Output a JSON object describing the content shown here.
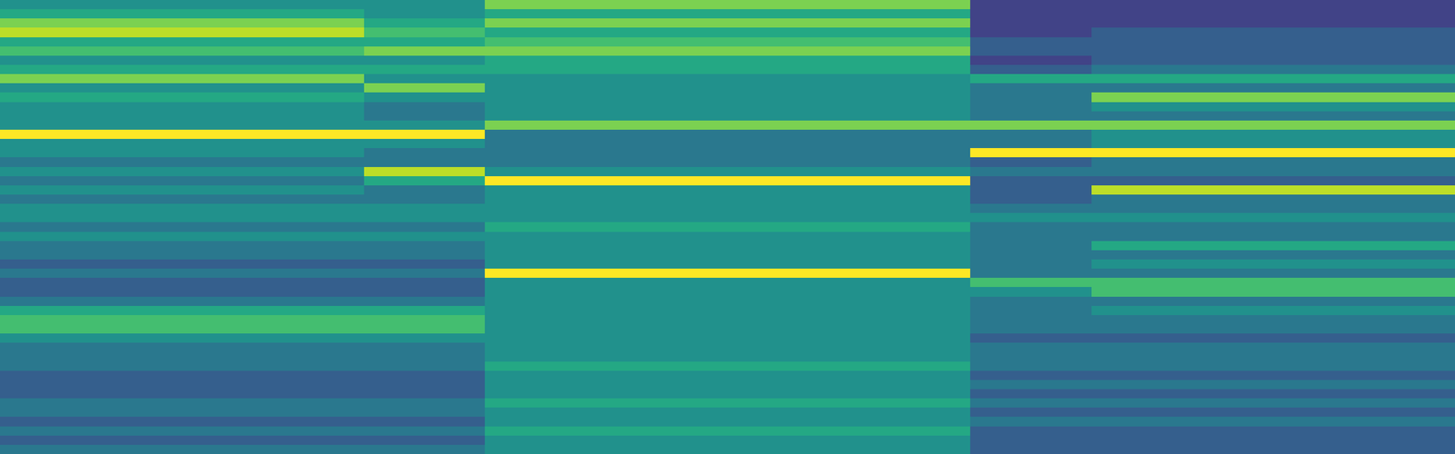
{
  "chart_data": {
    "type": "heatmap",
    "color": "Viridis",
    "tick_labels": false,
    "zlim": [
      0,
      10
    ],
    "cells": [
      [
        5,
        5,
        5,
        5,
        5,
        5,
        5,
        5,
        8,
        8,
        8,
        8,
        8,
        8,
        8,
        8,
        2,
        2,
        2,
        2,
        2,
        2,
        2,
        2
      ],
      [
        6,
        6,
        6,
        6,
        6,
        6,
        5,
        5,
        6,
        6,
        6,
        6,
        6,
        6,
        6,
        6,
        2,
        2,
        2,
        2,
        2,
        2,
        2,
        2
      ],
      [
        8,
        8,
        8,
        8,
        8,
        8,
        6,
        6,
        8,
        8,
        8,
        8,
        8,
        8,
        8,
        8,
        2,
        2,
        2,
        2,
        2,
        2,
        2,
        2
      ],
      [
        9,
        9,
        9,
        9,
        9,
        9,
        7,
        7,
        6,
        6,
        6,
        6,
        6,
        6,
        6,
        6,
        2,
        2,
        3,
        3,
        3,
        3,
        3,
        3
      ],
      [
        6,
        6,
        6,
        6,
        6,
        6,
        6,
        6,
        7,
        7,
        7,
        7,
        7,
        7,
        7,
        7,
        3,
        3,
        3,
        3,
        3,
        3,
        3,
        3
      ],
      [
        7,
        7,
        7,
        7,
        7,
        7,
        8,
        8,
        8,
        8,
        8,
        8,
        8,
        8,
        8,
        8,
        3,
        3,
        3,
        3,
        3,
        3,
        3,
        3
      ],
      [
        5,
        5,
        5,
        5,
        5,
        5,
        5,
        5,
        6,
        6,
        6,
        6,
        6,
        6,
        6,
        6,
        2,
        2,
        3,
        3,
        3,
        3,
        3,
        3
      ],
      [
        6,
        6,
        6,
        6,
        6,
        6,
        6,
        6,
        6,
        6,
        6,
        6,
        6,
        6,
        6,
        6,
        3,
        3,
        4,
        4,
        4,
        4,
        4,
        4
      ],
      [
        8,
        8,
        8,
        8,
        8,
        8,
        5,
        5,
        5,
        5,
        5,
        5,
        5,
        5,
        5,
        5,
        6,
        6,
        6,
        6,
        6,
        6,
        6,
        6
      ],
      [
        5,
        5,
        5,
        5,
        5,
        5,
        8,
        8,
        5,
        5,
        5,
        5,
        5,
        5,
        5,
        5,
        4,
        4,
        4,
        4,
        4,
        4,
        4,
        4
      ],
      [
        6,
        6,
        6,
        6,
        6,
        6,
        5,
        5,
        5,
        5,
        5,
        5,
        5,
        5,
        5,
        5,
        4,
        4,
        8,
        8,
        8,
        8,
        8,
        8
      ],
      [
        5,
        5,
        5,
        5,
        5,
        5,
        4,
        4,
        5,
        5,
        5,
        5,
        5,
        5,
        5,
        5,
        4,
        4,
        5,
        5,
        5,
        5,
        5,
        5
      ],
      [
        5,
        5,
        5,
        5,
        5,
        5,
        4,
        4,
        5,
        5,
        5,
        5,
        5,
        5,
        5,
        5,
        4,
        4,
        4,
        4,
        4,
        4,
        4,
        4
      ],
      [
        5,
        5,
        5,
        5,
        5,
        5,
        5,
        5,
        8,
        8,
        8,
        8,
        8,
        8,
        8,
        8,
        8,
        8,
        8,
        8,
        8,
        8,
        8,
        8
      ],
      [
        10,
        10,
        10,
        10,
        10,
        10,
        10,
        10,
        4,
        4,
        4,
        4,
        4,
        4,
        4,
        4,
        4,
        4,
        5,
        5,
        5,
        5,
        5,
        5
      ],
      [
        5,
        5,
        5,
        5,
        5,
        5,
        5,
        5,
        4,
        4,
        4,
        4,
        4,
        4,
        4,
        4,
        4,
        4,
        5,
        5,
        5,
        5,
        5,
        5
      ],
      [
        5,
        5,
        5,
        5,
        5,
        5,
        4,
        4,
        4,
        4,
        4,
        4,
        4,
        4,
        4,
        4,
        10,
        10,
        10,
        10,
        10,
        10,
        10,
        10
      ],
      [
        4,
        4,
        4,
        4,
        4,
        4,
        4,
        4,
        4,
        4,
        4,
        4,
        4,
        4,
        4,
        4,
        3,
        3,
        4,
        4,
        4,
        4,
        4,
        4
      ],
      [
        5,
        5,
        5,
        5,
        5,
        5,
        9,
        9,
        5,
        5,
        5,
        5,
        5,
        5,
        5,
        5,
        4,
        4,
        4,
        4,
        4,
        4,
        4,
        4
      ],
      [
        4,
        4,
        4,
        4,
        4,
        4,
        6,
        6,
        10,
        10,
        10,
        10,
        10,
        10,
        10,
        10,
        3,
        3,
        3,
        3,
        3,
        3,
        3,
        3
      ],
      [
        5,
        5,
        5,
        5,
        5,
        5,
        4,
        4,
        5,
        5,
        5,
        5,
        5,
        5,
        5,
        5,
        3,
        3,
        9,
        9,
        9,
        9,
        9,
        9
      ],
      [
        4,
        4,
        4,
        4,
        4,
        4,
        4,
        4,
        5,
        5,
        5,
        5,
        5,
        5,
        5,
        5,
        3,
        3,
        4,
        4,
        4,
        4,
        4,
        4
      ],
      [
        5,
        5,
        5,
        5,
        5,
        5,
        5,
        5,
        5,
        5,
        5,
        5,
        5,
        5,
        5,
        5,
        4,
        4,
        4,
        4,
        4,
        4,
        4,
        4
      ],
      [
        5,
        5,
        5,
        5,
        5,
        5,
        5,
        5,
        5,
        5,
        5,
        5,
        5,
        5,
        5,
        5,
        5,
        5,
        5,
        5,
        5,
        5,
        5,
        5
      ],
      [
        4,
        4,
        4,
        4,
        4,
        4,
        4,
        4,
        6,
        6,
        6,
        6,
        6,
        6,
        6,
        6,
        4,
        4,
        4,
        4,
        4,
        4,
        4,
        4
      ],
      [
        5,
        5,
        5,
        5,
        5,
        5,
        5,
        5,
        5,
        5,
        5,
        5,
        5,
        5,
        5,
        5,
        4,
        4,
        4,
        4,
        4,
        4,
        4,
        4
      ],
      [
        4,
        4,
        4,
        4,
        4,
        4,
        4,
        4,
        5,
        5,
        5,
        5,
        5,
        5,
        5,
        5,
        4,
        4,
        6,
        6,
        6,
        6,
        6,
        6
      ],
      [
        4,
        4,
        4,
        4,
        4,
        4,
        4,
        4,
        5,
        5,
        5,
        5,
        5,
        5,
        5,
        5,
        4,
        4,
        4,
        4,
        4,
        4,
        4,
        4
      ],
      [
        3,
        3,
        3,
        3,
        3,
        3,
        3,
        3,
        5,
        5,
        5,
        5,
        5,
        5,
        5,
        5,
        4,
        4,
        5,
        5,
        5,
        5,
        5,
        5
      ],
      [
        4,
        4,
        4,
        4,
        4,
        4,
        4,
        4,
        10,
        10,
        10,
        10,
        10,
        10,
        10,
        10,
        4,
        4,
        4,
        4,
        4,
        4,
        4,
        4
      ],
      [
        3,
        3,
        3,
        3,
        3,
        3,
        3,
        3,
        5,
        5,
        5,
        5,
        5,
        5,
        5,
        5,
        7,
        7,
        7,
        7,
        7,
        7,
        7,
        7
      ],
      [
        3,
        3,
        3,
        3,
        3,
        3,
        3,
        3,
        5,
        5,
        5,
        5,
        5,
        5,
        5,
        5,
        5,
        5,
        7,
        7,
        7,
        7,
        7,
        7
      ],
      [
        4,
        4,
        4,
        4,
        4,
        4,
        4,
        4,
        5,
        5,
        5,
        5,
        5,
        5,
        5,
        5,
        4,
        4,
        4,
        4,
        4,
        4,
        4,
        4
      ],
      [
        6,
        6,
        6,
        6,
        6,
        6,
        6,
        6,
        5,
        5,
        5,
        5,
        5,
        5,
        5,
        5,
        4,
        4,
        5,
        5,
        5,
        5,
        5,
        5
      ],
      [
        7,
        7,
        7,
        7,
        7,
        7,
        7,
        7,
        5,
        5,
        5,
        5,
        5,
        5,
        5,
        5,
        4,
        4,
        4,
        4,
        4,
        4,
        4,
        4
      ],
      [
        7,
        7,
        7,
        7,
        7,
        7,
        7,
        7,
        5,
        5,
        5,
        5,
        5,
        5,
        5,
        5,
        4,
        4,
        4,
        4,
        4,
        4,
        4,
        4
      ],
      [
        5,
        5,
        5,
        5,
        5,
        5,
        5,
        5,
        5,
        5,
        5,
        5,
        5,
        5,
        5,
        5,
        3,
        3,
        3,
        3,
        3,
        3,
        3,
        3
      ],
      [
        4,
        4,
        4,
        4,
        4,
        4,
        4,
        4,
        5,
        5,
        5,
        5,
        5,
        5,
        5,
        5,
        4,
        4,
        4,
        4,
        4,
        4,
        4,
        4
      ],
      [
        4,
        4,
        4,
        4,
        4,
        4,
        4,
        4,
        5,
        5,
        5,
        5,
        5,
        5,
        5,
        5,
        4,
        4,
        4,
        4,
        4,
        4,
        4,
        4
      ],
      [
        4,
        4,
        4,
        4,
        4,
        4,
        4,
        4,
        6,
        6,
        6,
        6,
        6,
        6,
        6,
        6,
        4,
        4,
        4,
        4,
        4,
        4,
        4,
        4
      ],
      [
        3,
        3,
        3,
        3,
        3,
        3,
        3,
        3,
        5,
        5,
        5,
        5,
        5,
        5,
        5,
        5,
        3,
        3,
        3,
        3,
        3,
        3,
        3,
        3
      ],
      [
        3,
        3,
        3,
        3,
        3,
        3,
        3,
        3,
        5,
        5,
        5,
        5,
        5,
        5,
        5,
        5,
        4,
        4,
        4,
        4,
        4,
        4,
        4,
        4
      ],
      [
        3,
        3,
        3,
        3,
        3,
        3,
        3,
        3,
        5,
        5,
        5,
        5,
        5,
        5,
        5,
        5,
        3,
        3,
        3,
        3,
        3,
        3,
        3,
        3
      ],
      [
        4,
        4,
        4,
        4,
        4,
        4,
        4,
        4,
        6,
        6,
        6,
        6,
        6,
        6,
        6,
        6,
        4,
        4,
        4,
        4,
        4,
        4,
        4,
        4
      ],
      [
        4,
        4,
        4,
        4,
        4,
        4,
        4,
        4,
        5,
        5,
        5,
        5,
        5,
        5,
        5,
        5,
        3,
        3,
        3,
        3,
        3,
        3,
        3,
        3
      ],
      [
        3,
        3,
        3,
        3,
        3,
        3,
        3,
        3,
        5,
        5,
        5,
        5,
        5,
        5,
        5,
        5,
        4,
        4,
        4,
        4,
        4,
        4,
        4,
        4
      ],
      [
        4,
        4,
        4,
        4,
        4,
        4,
        4,
        4,
        6,
        6,
        6,
        6,
        6,
        6,
        6,
        6,
        3,
        3,
        3,
        3,
        3,
        3,
        3,
        3
      ],
      [
        3,
        3,
        3,
        3,
        3,
        3,
        3,
        3,
        5,
        5,
        5,
        5,
        5,
        5,
        5,
        5,
        3,
        3,
        3,
        3,
        3,
        3,
        3,
        3
      ],
      [
        4,
        4,
        4,
        4,
        4,
        4,
        4,
        4,
        5,
        5,
        5,
        5,
        5,
        5,
        5,
        5,
        3,
        3,
        3,
        3,
        3,
        3,
        3,
        3
      ]
    ]
  }
}
